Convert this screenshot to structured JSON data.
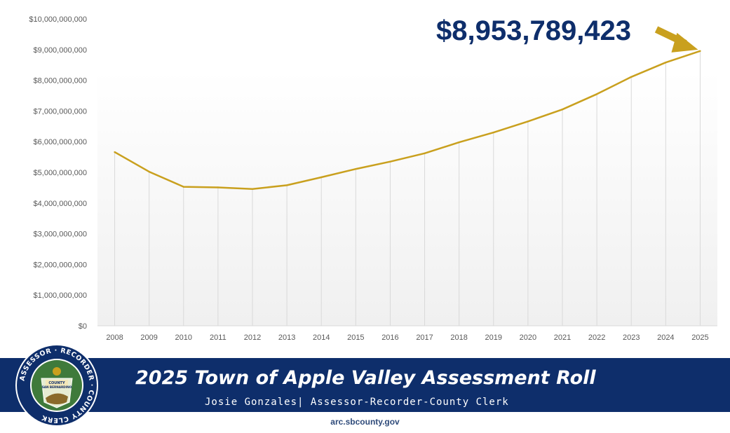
{
  "callout": {
    "value_text": "$8,953,789,423",
    "arrow_color": "#c9a01e",
    "text_color": "#0e2e6b"
  },
  "banner": {
    "title": "2025 Town of Apple Valley Assessment Roll",
    "subtitle": "Josie Gonzales| Assessor-Recorder-County Clerk",
    "background": "#0e2e6b"
  },
  "seal": {
    "ring_text": "ASSESSOR · RECORDER · COUNTY CLERK",
    "center_text_1": "COUNTY",
    "center_text_2": "SAN BERNARDINO",
    "icon": "county-seal-icon"
  },
  "footer": {
    "website": "arc.sbcounty.gov"
  },
  "chart_data": {
    "type": "line",
    "categories": [
      "2008",
      "2009",
      "2010",
      "2011",
      "2012",
      "2013",
      "2014",
      "2015",
      "2016",
      "2017",
      "2018",
      "2019",
      "2020",
      "2021",
      "2022",
      "2023",
      "2024",
      "2025"
    ],
    "series": [
      {
        "values": [
          5660000000,
          5020000000,
          4530000000,
          4510000000,
          4460000000,
          4580000000,
          4840000000,
          5110000000,
          5350000000,
          5620000000,
          5980000000,
          6300000000,
          6660000000,
          7050000000,
          7550000000,
          8110000000,
          8580000000,
          8953789423
        ],
        "color": "#c9a01e"
      }
    ],
    "y_ticks": [
      "$0",
      "$1,000,000,000",
      "$2,000,000,000",
      "$3,000,000,000",
      "$4,000,000,000",
      "$5,000,000,000",
      "$6,000,000,000",
      "$7,000,000,000",
      "$8,000,000,000",
      "$9,000,000,000",
      "$10,000,000,000"
    ],
    "ylim": [
      0,
      10000000000
    ],
    "grid": "vertical",
    "legend": "none",
    "title": "",
    "xlabel": "",
    "ylabel": ""
  }
}
